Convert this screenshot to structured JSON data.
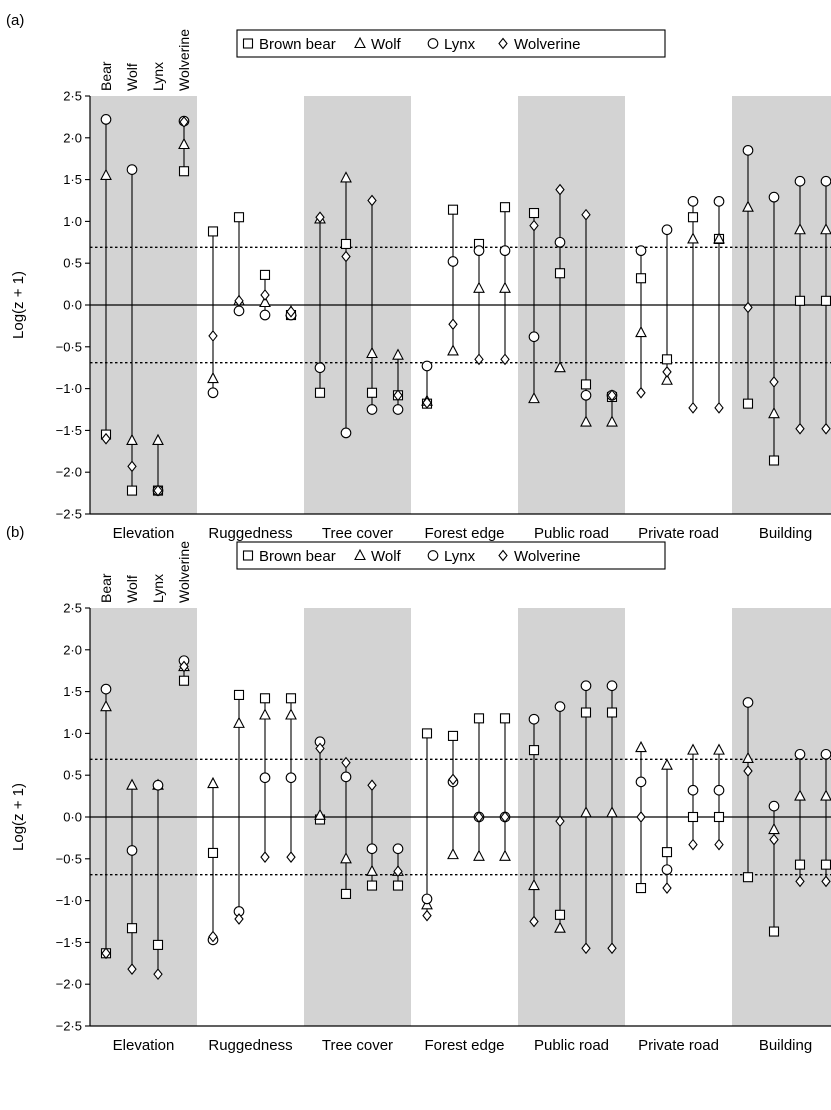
{
  "chart_data": [
    {
      "panel": "(a)",
      "type": "scatter",
      "ylabel": "Log(z + 1)",
      "ylim": [
        -2.5,
        2.5
      ],
      "yticks": [
        "2·5",
        "2·0",
        "1·5",
        "1·0",
        "0·5",
        "0·0",
        "−0·5",
        "−1·0",
        "−1·5",
        "−2·0",
        "−2·5"
      ],
      "reference_lines": {
        "solid": 0,
        "dotted": [
          0.69,
          -0.69
        ]
      },
      "categories": [
        "Elevation",
        "Ruggedness",
        "Tree cover",
        "Forest edge",
        "Public road",
        "Private road",
        "Building"
      ],
      "shaded_categories": [
        "Elevation",
        "Tree cover",
        "Public road",
        "Building"
      ],
      "column_labels": [
        "Bear",
        "Wolf",
        "Lynx",
        "Wolverine"
      ],
      "legend": [
        "Brown bear",
        "Wolf",
        "Lynx",
        "Wolverine"
      ],
      "series": [
        {
          "name": "Brown bear",
          "marker": "square",
          "values": [
            [
              -1.55,
              -2.22,
              -2.22,
              1.6
            ],
            [
              0.88,
              1.05,
              0.36,
              -0.12
            ],
            [
              -1.05,
              0.73,
              -1.05,
              -1.08
            ],
            [
              -1.18,
              1.14,
              0.73,
              1.17
            ],
            [
              1.1,
              0.38,
              -0.95,
              -1.1
            ],
            [
              0.32,
              -0.65,
              1.05,
              0.79
            ],
            [
              -1.18,
              -1.86,
              0.05,
              0.05
            ]
          ]
        },
        {
          "name": "Wolf",
          "marker": "triangle",
          "values": [
            [
              1.55,
              -1.62,
              -1.62,
              1.92
            ],
            [
              -0.88,
              0.05,
              0.03,
              -0.08
            ],
            [
              1.03,
              1.52,
              -0.58,
              -0.6
            ],
            [
              -1.15,
              -0.55,
              0.2,
              0.2
            ],
            [
              -1.12,
              -0.75,
              -1.4,
              -1.4
            ],
            [
              -0.33,
              -0.9,
              0.79,
              0.79
            ],
            [
              1.17,
              -1.3,
              0.9,
              0.9
            ]
          ]
        },
        {
          "name": "Lynx",
          "marker": "circle",
          "values": [
            [
              2.22,
              1.62,
              -2.22,
              2.2
            ],
            [
              -1.05,
              -0.07,
              -0.12,
              -0.12
            ],
            [
              -0.75,
              -1.53,
              -1.25,
              -1.25
            ],
            [
              -0.73,
              0.52,
              0.65,
              0.65
            ],
            [
              -0.38,
              0.75,
              -1.08,
              -1.08
            ],
            [
              0.65,
              0.9,
              1.24,
              1.24
            ],
            [
              1.85,
              1.29,
              1.48,
              1.48
            ]
          ]
        },
        {
          "name": "Wolverine",
          "marker": "diamond",
          "values": [
            [
              -1.6,
              -1.93,
              -2.22,
              2.19
            ],
            [
              -0.37,
              0.05,
              0.12,
              -0.08
            ],
            [
              1.05,
              0.58,
              1.25,
              -1.08
            ],
            [
              -1.17,
              -0.23,
              -0.65,
              -0.65
            ],
            [
              0.95,
              1.38,
              1.08,
              -1.08
            ],
            [
              -1.05,
              -0.8,
              -1.23,
              -1.23
            ],
            [
              -0.03,
              -0.92,
              -1.48,
              -1.48
            ]
          ]
        }
      ]
    },
    {
      "panel": "(b)",
      "type": "scatter",
      "ylabel": "Log(z + 1)",
      "ylim": [
        -2.5,
        2.5
      ],
      "yticks": [
        "2·5",
        "2·0",
        "1·5",
        "1·0",
        "0·5",
        "0·0",
        "−0·5",
        "−1·0",
        "−1·5",
        "−2·0",
        "−2·5"
      ],
      "reference_lines": {
        "solid": 0,
        "dotted": [
          0.69,
          -0.69
        ]
      },
      "categories": [
        "Elevation",
        "Ruggedness",
        "Tree cover",
        "Forest edge",
        "Public road",
        "Private road",
        "Building"
      ],
      "shaded_categories": [
        "Elevation",
        "Tree cover",
        "Public road",
        "Building"
      ],
      "column_labels": [
        "Bear",
        "Wolf",
        "Lynx",
        "Wolverine"
      ],
      "legend": [
        "Brown bear",
        "Wolf",
        "Lynx",
        "Wolverine"
      ],
      "series": [
        {
          "name": "Brown bear",
          "marker": "square",
          "values": [
            [
              -1.63,
              -1.33,
              -1.53,
              1.63
            ],
            [
              -0.43,
              1.46,
              1.42,
              1.42
            ],
            [
              -0.03,
              -0.92,
              -0.82,
              -0.82
            ],
            [
              1.0,
              0.97,
              1.18,
              1.18
            ],
            [
              0.8,
              -1.17,
              1.25,
              1.25
            ],
            [
              -0.85,
              -0.42,
              0.0,
              0.0
            ],
            [
              -0.72,
              -1.37,
              -0.57,
              -0.57
            ]
          ]
        },
        {
          "name": "Wolf",
          "marker": "triangle",
          "values": [
            [
              1.32,
              0.38,
              0.38,
              1.8
            ],
            [
              0.4,
              1.12,
              1.22,
              1.22
            ],
            [
              0.02,
              -0.5,
              -0.65,
              -0.65
            ],
            [
              -1.05,
              -0.45,
              -0.47,
              -0.47
            ],
            [
              -0.82,
              -1.33,
              0.05,
              0.05
            ],
            [
              0.83,
              0.62,
              0.8,
              0.8
            ],
            [
              0.7,
              -0.15,
              0.25,
              0.25
            ]
          ]
        },
        {
          "name": "Lynx",
          "marker": "circle",
          "values": [
            [
              1.53,
              -0.4,
              0.38,
              1.87
            ],
            [
              -1.47,
              -1.13,
              0.47,
              0.47
            ],
            [
              0.9,
              0.48,
              -0.38,
              -0.38
            ],
            [
              -0.98,
              0.42,
              0.0,
              0.0
            ],
            [
              1.17,
              1.32,
              1.57,
              1.57
            ],
            [
              0.42,
              -0.63,
              0.32,
              0.32
            ],
            [
              1.37,
              0.13,
              0.75,
              0.75
            ]
          ]
        },
        {
          "name": "Wolverine",
          "marker": "diamond",
          "values": [
            [
              -1.63,
              -1.82,
              -1.88,
              1.8
            ],
            [
              -1.43,
              -1.22,
              -0.48,
              -0.48
            ],
            [
              0.82,
              0.65,
              0.38,
              -0.65
            ],
            [
              -1.18,
              0.45,
              0.0,
              0.0
            ],
            [
              -1.25,
              -0.05,
              -1.57,
              -1.57
            ],
            [
              0.0,
              -0.85,
              -0.33,
              -0.33
            ],
            [
              0.55,
              -0.27,
              -0.77,
              -0.77
            ]
          ]
        }
      ]
    }
  ]
}
